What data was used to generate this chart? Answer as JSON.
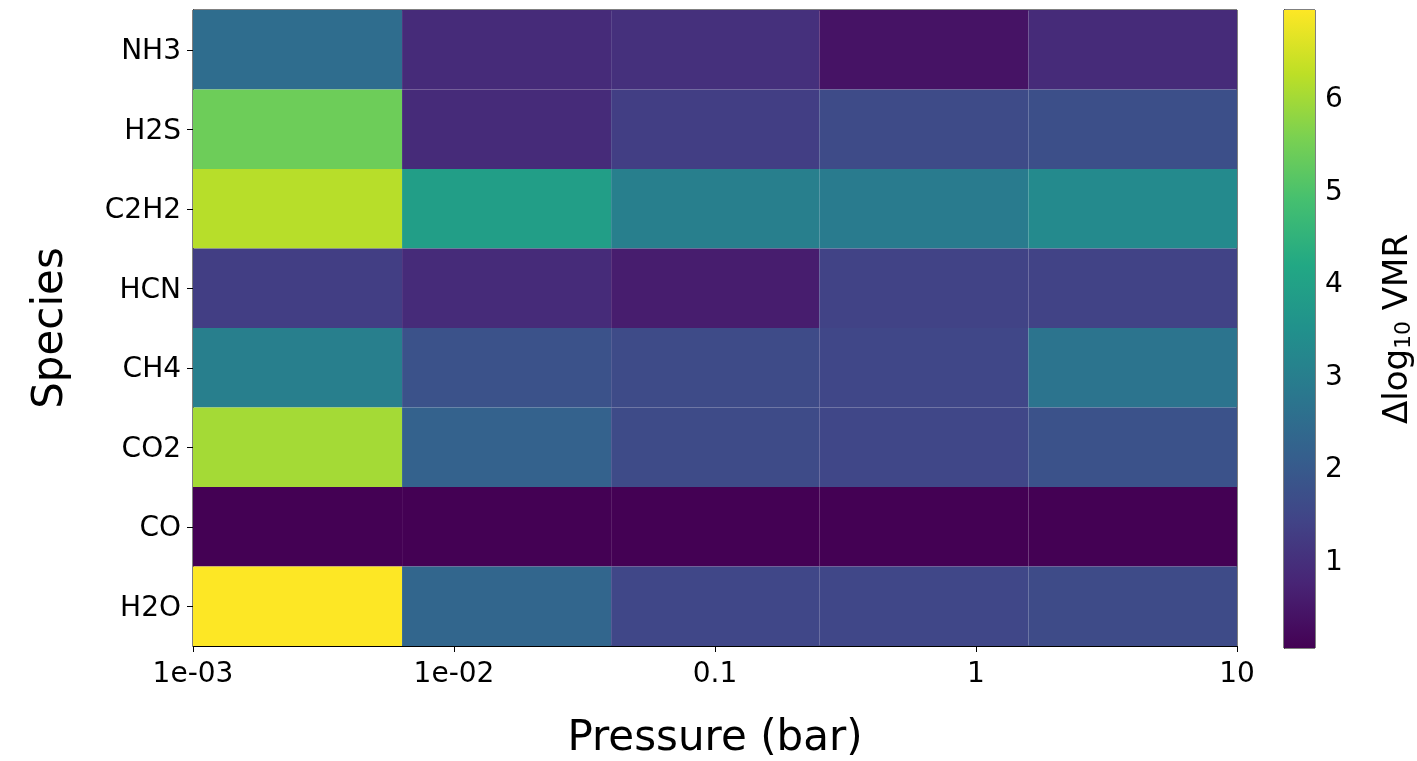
{
  "chart_data": {
    "type": "heatmap",
    "xlabel": "Pressure (bar)",
    "ylabel": "Species",
    "clabel": "Δlog$_{10}$ VMR",
    "x": [
      0.0025,
      0.016,
      0.1,
      0.63,
      4
    ],
    "y_categories": [
      "NH3",
      "H2S",
      "C2H2",
      "HCN",
      "CH4",
      "CO2",
      "CO",
      "H2O"
    ],
    "log": "x",
    "xlim": [
      0.001,
      10
    ],
    "xticks": [
      {
        "value": 0.001,
        "label": "1e-03"
      },
      {
        "value": 0.01,
        "label": "1e-02"
      },
      0.1,
      1,
      10
    ],
    "cells": [
      [
        2.5,
        0.9,
        1.0,
        0.4,
        0.9
      ],
      [
        5.4,
        0.9,
        1.3,
        1.6,
        1.7
      ],
      [
        6.2,
        3.9,
        3.0,
        2.9,
        3.3
      ],
      [
        1.3,
        0.9,
        0.6,
        1.4,
        1.4
      ],
      [
        3.0,
        1.8,
        1.6,
        1.5,
        2.7
      ],
      [
        6.0,
        2.2,
        1.6,
        1.5,
        1.8
      ],
      [
        0.05,
        0.05,
        0.05,
        0.05,
        0.05
      ],
      [
        6.95,
        2.3,
        1.5,
        1.5,
        1.6
      ]
    ],
    "clim": [
      0.05,
      6.95
    ],
    "cticks": [
      1,
      2,
      3,
      4,
      5,
      6
    ]
  }
}
